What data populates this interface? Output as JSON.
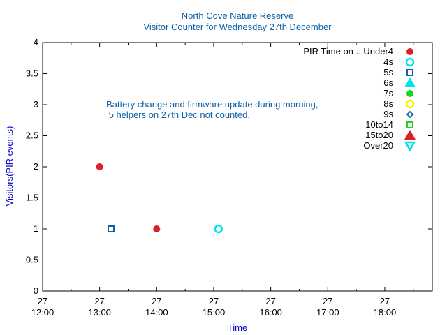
{
  "chart_data": {
    "type": "scatter",
    "title": "North Cove Nature Reserve",
    "subtitle": "Visitor Counter for Wednesday 27th December",
    "xlabel": "Time",
    "ylabel": "Visitors(PIR events)",
    "xlim": [
      "27 12:00",
      "27 18:50"
    ],
    "ylim": [
      0,
      4
    ],
    "x_ticks": [
      {
        "day": "27",
        "time": "12:00"
      },
      {
        "day": "27",
        "time": "13:00"
      },
      {
        "day": "27",
        "time": "14:00"
      },
      {
        "day": "27",
        "time": "15:00"
      },
      {
        "day": "27",
        "time": "16:00"
      },
      {
        "day": "27",
        "time": "17:00"
      },
      {
        "day": "27",
        "time": "18:00"
      }
    ],
    "y_ticks": [
      "0",
      "0.5",
      "1",
      "1.5",
      "2",
      "2.5",
      "3",
      "3.5",
      "4"
    ],
    "grid": false,
    "legend_position": "top-right",
    "legend_title": "PIR Time on ..",
    "annotation": [
      "Battery change and firmware update during morning,",
      " 5 helpers on 27th Dec not counted."
    ],
    "series": [
      {
        "name": "Under4",
        "marker": "filled-circle",
        "color": "#dd1f26",
        "points": [
          {
            "x": "27 13:00",
            "y": 2
          },
          {
            "x": "27 14:00",
            "y": 1
          }
        ]
      },
      {
        "name": "4s",
        "marker": "open-circle",
        "color": "#00e5e5",
        "points": [
          {
            "x": "27 15:05",
            "y": 1
          }
        ]
      },
      {
        "name": "5s",
        "marker": "open-square",
        "color": "#0d61a8",
        "points": [
          {
            "x": "27 13:12",
            "y": 1
          }
        ]
      },
      {
        "name": "6s",
        "marker": "filled-triangle-up",
        "color": "#00e5e5",
        "points": []
      },
      {
        "name": "7s",
        "marker": "filled-circle",
        "color": "#1ed51e",
        "points": []
      },
      {
        "name": "8s",
        "marker": "open-circle",
        "color": "#ffee00",
        "points": []
      },
      {
        "name": "9s",
        "marker": "open-diamond",
        "color": "#0d61a8",
        "points": []
      },
      {
        "name": "10to14",
        "marker": "open-square",
        "color": "#1ed51e",
        "points": []
      },
      {
        "name": "15to20",
        "marker": "filled-triangle-up",
        "color": "#dd1f26",
        "points": []
      },
      {
        "name": "Over20",
        "marker": "open-triangle-down",
        "color": "#00e5e5",
        "points": []
      }
    ]
  },
  "colors": {
    "title": "#0d61a8",
    "axis_label": "#0000cc",
    "annotation": "#0d61a8",
    "axis": "#000000"
  }
}
